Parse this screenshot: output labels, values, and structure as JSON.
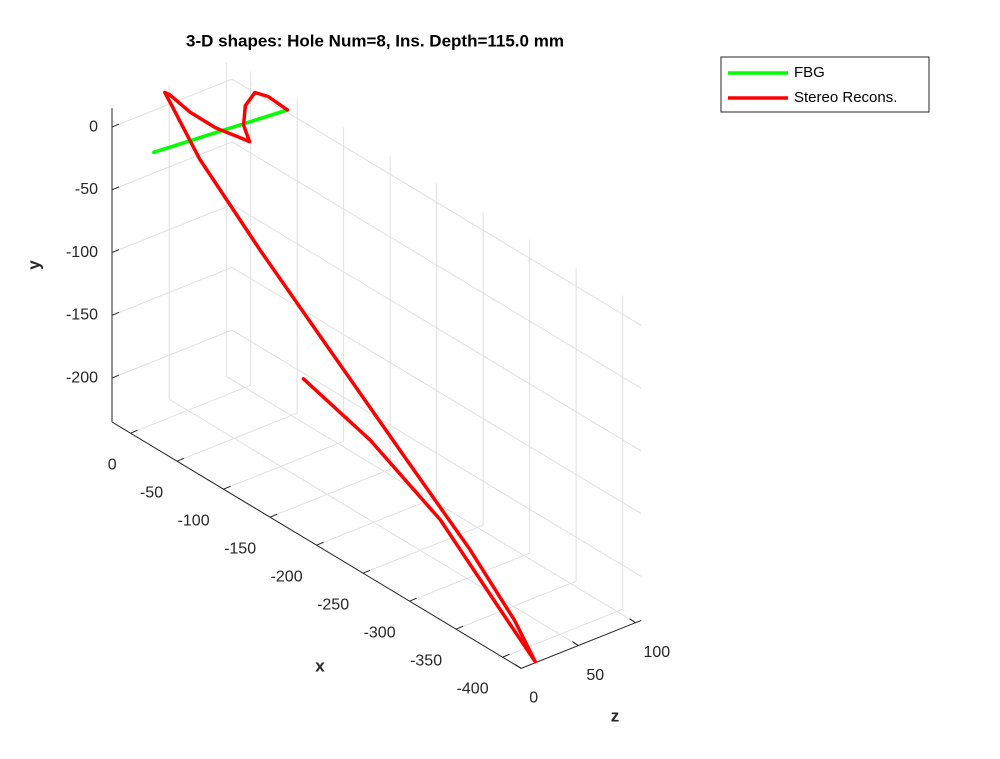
{
  "chart_data": {
    "type": "line3d",
    "title": "3-D shapes: Hole Num=8, Ins. Depth=115.0 mm",
    "xlabel": "x",
    "ylabel": "y",
    "zlabel": "z",
    "xlim": [
      -420,
      20
    ],
    "ylim": [
      -235,
      15
    ],
    "zlim": [
      0,
      105
    ],
    "xticks": [
      -400,
      -350,
      -300,
      -250,
      -200,
      -150,
      -100,
      -50,
      0
    ],
    "yticks": [
      -200,
      -150,
      -100,
      -50,
      0
    ],
    "zticks": [
      0,
      50,
      100
    ],
    "grid": true,
    "legend_loc": "outside-northeast",
    "series": [
      {
        "name": "FBG",
        "color": "#00ff00",
        "x": [
          -25,
          -25.5,
          -26
        ],
        "y": [
          0,
          -4,
          -8
        ],
        "z": [
          0,
          58,
          116
        ]
      },
      {
        "name": "Stereo Recons.",
        "color": "#ff0000",
        "x": [
          -26,
          -25,
          -23,
          -25,
          -33,
          -48,
          -46,
          -36,
          -27,
          -20,
          -22,
          -33,
          -68,
          -136,
          -212,
          -288,
          -365,
          -413,
          -435,
          -395,
          -328,
          -250,
          -176
        ],
        "y": [
          -8,
          8,
          14,
          8,
          -1,
          -5,
          0,
          8,
          22,
          37,
          42,
          40,
          12,
          -30,
          -75,
          -120,
          -165,
          -200,
          -223,
          -200,
          -159,
          -131,
          -116
        ],
        "z": [
          116,
          100,
          90,
          80,
          72,
          65,
          58,
          45,
          30,
          18,
          12,
          8,
          5,
          3,
          2,
          1,
          0,
          0,
          0,
          2,
          4,
          6,
          8
        ]
      }
    ]
  }
}
